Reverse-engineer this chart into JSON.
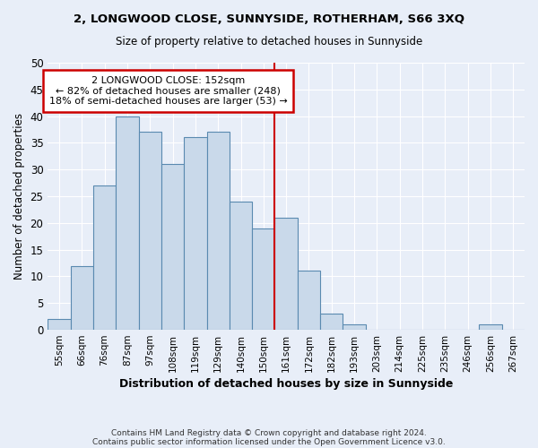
{
  "title": "2, LONGWOOD CLOSE, SUNNYSIDE, ROTHERHAM, S66 3XQ",
  "subtitle": "Size of property relative to detached houses in Sunnyside",
  "xlabel": "Distribution of detached houses by size in Sunnyside",
  "ylabel": "Number of detached properties",
  "footer_line1": "Contains HM Land Registry data © Crown copyright and database right 2024.",
  "footer_line2": "Contains public sector information licensed under the Open Government Licence v3.0.",
  "bar_labels": [
    "55sqm",
    "66sqm",
    "76sqm",
    "87sqm",
    "97sqm",
    "108sqm",
    "119sqm",
    "129sqm",
    "140sqm",
    "150sqm",
    "161sqm",
    "172sqm",
    "182sqm",
    "193sqm",
    "203sqm",
    "214sqm",
    "225sqm",
    "235sqm",
    "246sqm",
    "256sqm",
    "267sqm"
  ],
  "bar_values": [
    2,
    12,
    27,
    40,
    37,
    31,
    36,
    37,
    24,
    19,
    21,
    11,
    3,
    1,
    0,
    0,
    0,
    0,
    0,
    1,
    0
  ],
  "bar_color": "#c9d9ea",
  "bar_edge_color": "#5a8ab0",
  "background_color": "#e8eef8",
  "grid_color": "#ffffff",
  "vline_x": 9.5,
  "vline_color": "#cc0000",
  "annotation_line1": "2 LONGWOOD CLOSE: 152sqm",
  "annotation_line2": "← 82% of detached houses are smaller (248)",
  "annotation_line3": "18% of semi-detached houses are larger (53) →",
  "annotation_box_color": "#ffffff",
  "annotation_border_color": "#cc0000",
  "ylim": [
    0,
    50
  ],
  "yticks": [
    0,
    5,
    10,
    15,
    20,
    25,
    30,
    35,
    40,
    45,
    50
  ]
}
